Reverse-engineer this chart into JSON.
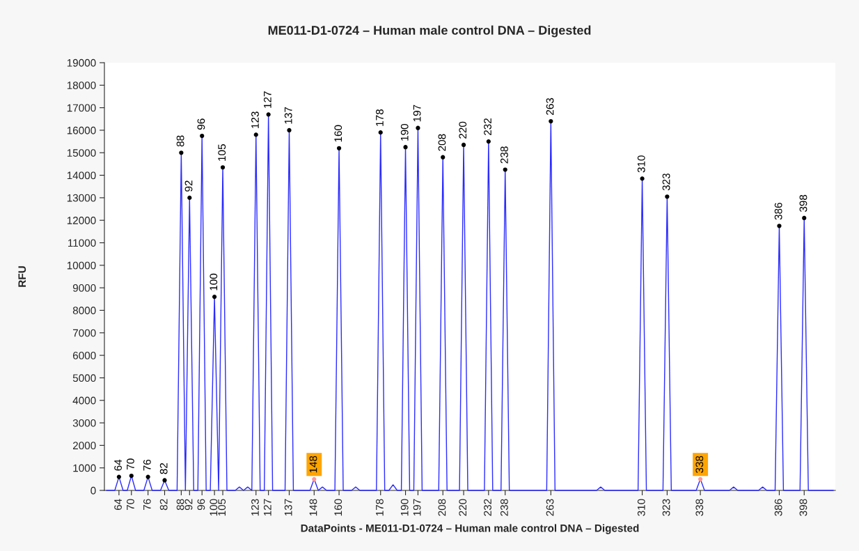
{
  "chart_data": {
    "type": "line",
    "title": "ME011-D1-0724 – Human male control DNA – Digested",
    "xlabel": "DataPoints - ME011-D1-0724 – Human male control DNA – Digested",
    "ylabel": "RFU",
    "categories": [
      null,
      null,
      null,
      "64",
      null,
      null,
      "70",
      null,
      null,
      null,
      "76",
      null,
      null,
      null,
      "82",
      null,
      null,
      null,
      "88",
      null,
      "92",
      null,
      null,
      "96",
      null,
      null,
      "100",
      null,
      "105",
      null,
      null,
      null,
      null,
      null,
      null,
      null,
      "123",
      null,
      null,
      "127",
      null,
      null,
      null,
      null,
      "137",
      null,
      null,
      null,
      null,
      null,
      "148",
      null,
      null,
      null,
      null,
      null,
      "160",
      null,
      null,
      null,
      null,
      null,
      null,
      null,
      null,
      null,
      "178",
      null,
      null,
      null,
      null,
      null,
      "190",
      null,
      null,
      "197",
      null,
      null,
      null,
      null,
      null,
      "208",
      null,
      null,
      null,
      null,
      "220",
      null,
      null,
      null,
      null,
      null,
      "232",
      null,
      null,
      null,
      "238",
      null,
      null,
      null,
      null,
      null,
      null,
      null,
      null,
      null,
      null,
      "263",
      null,
      null,
      null,
      null,
      null,
      null,
      null,
      null,
      null,
      null,
      null,
      null,
      null,
      null,
      null,
      null,
      null,
      null,
      null,
      null,
      null,
      "310",
      null,
      null,
      null,
      null,
      null,
      "323",
      null,
      null,
      null,
      null,
      null,
      null,
      null,
      "338",
      null,
      null,
      null,
      null,
      null,
      null,
      null,
      null,
      null,
      null,
      null,
      null,
      null,
      null,
      null,
      null,
      null,
      null,
      "386",
      null,
      null,
      null,
      null,
      null,
      "398",
      null,
      null,
      null,
      null,
      null,
      null,
      null
    ],
    "ylim": [
      0,
      19000
    ],
    "yticks": [
      0,
      1000,
      2000,
      3000,
      4000,
      5000,
      6000,
      7000,
      8000,
      9000,
      10000,
      11000,
      12000,
      13000,
      14000,
      15000,
      16000,
      17000,
      18000,
      19000
    ],
    "grid": false,
    "series": [
      {
        "color": "#2b2bff",
        "values": [
          0,
          0,
          0,
          600,
          0,
          0,
          650,
          0,
          0,
          0,
          600,
          0,
          0,
          0,
          450,
          0,
          0,
          0,
          15000,
          0,
          13000,
          0,
          0,
          15750,
          0,
          0,
          8600,
          0,
          14350,
          0,
          0,
          0,
          150,
          0,
          150,
          0,
          15800,
          0,
          0,
          16700,
          0,
          0,
          0,
          0,
          16000,
          0,
          0,
          0,
          0,
          0,
          500,
          0,
          150,
          0,
          0,
          0,
          15200,
          0,
          0,
          0,
          150,
          0,
          0,
          0,
          0,
          0,
          15900,
          0,
          0,
          250,
          0,
          0,
          15250,
          0,
          0,
          16100,
          0,
          0,
          0,
          0,
          0,
          14800,
          0,
          0,
          0,
          0,
          15350,
          0,
          0,
          0,
          0,
          0,
          15500,
          0,
          0,
          0,
          14250,
          0,
          0,
          0,
          0,
          0,
          0,
          0,
          0,
          0,
          0,
          16400,
          0,
          0,
          0,
          0,
          0,
          0,
          0,
          0,
          0,
          0,
          0,
          150,
          0,
          0,
          0,
          0,
          0,
          0,
          0,
          0,
          0,
          13850,
          0,
          0,
          0,
          0,
          0,
          13050,
          0,
          0,
          0,
          0,
          0,
          0,
          0,
          500,
          0,
          0,
          0,
          0,
          0,
          0,
          0,
          150,
          0,
          0,
          0,
          0,
          0,
          0,
          150,
          0,
          0,
          0,
          11750,
          0,
          0,
          0,
          0,
          0,
          12100,
          0,
          0,
          0,
          0,
          0,
          0,
          0
        ]
      },
      {
        "type": "scatter",
        "color": "#000000",
        "x": [
          "64",
          "70",
          "76",
          "82",
          "88",
          "92",
          "96",
          "100",
          "105",
          "123",
          "127",
          "137",
          "160",
          "178",
          "190",
          "197",
          "208",
          "220",
          "232",
          "238",
          "263",
          "310",
          "323",
          "386",
          "398"
        ],
        "values": [
          600,
          650,
          600,
          450,
          15000,
          13000,
          15750,
          8600,
          14350,
          15800,
          16700,
          16000,
          15200,
          15900,
          15250,
          16100,
          14800,
          15350,
          15500,
          14250,
          16400,
          13850,
          13050,
          11750,
          12100
        ]
      },
      {
        "type": "scatter",
        "color": "#ff9999",
        "x": [
          "148",
          "338"
        ],
        "values": [
          500,
          500
        ]
      }
    ],
    "annotations": [
      {
        "text": "64",
        "x": "64",
        "y": 600
      },
      {
        "text": "70",
        "x": "70",
        "y": 650
      },
      {
        "text": "76",
        "x": "76",
        "y": 600
      },
      {
        "text": "82",
        "x": "82",
        "y": 450
      },
      {
        "text": "88",
        "x": "88",
        "y": 15000
      },
      {
        "text": "92",
        "x": "92",
        "y": 13000
      },
      {
        "text": "96",
        "x": "96",
        "y": 15750
      },
      {
        "text": "100",
        "x": "100",
        "y": 8600
      },
      {
        "text": "105",
        "x": "105",
        "y": 14350
      },
      {
        "text": "123",
        "x": "123",
        "y": 15800
      },
      {
        "text": "127",
        "x": "127",
        "y": 16700
      },
      {
        "text": "137",
        "x": "137",
        "y": 16000
      },
      {
        "text": "148",
        "x": "148",
        "y": 500
      },
      {
        "text": "160",
        "x": "160",
        "y": 15200
      },
      {
        "text": "178",
        "x": "178",
        "y": 15900
      },
      {
        "text": "190",
        "x": "190",
        "y": 15250
      },
      {
        "text": "197",
        "x": "197",
        "y": 16100
      },
      {
        "text": "208",
        "x": "208",
        "y": 14800
      },
      {
        "text": "220",
        "x": "220",
        "y": 15350
      },
      {
        "text": "232",
        "x": "232",
        "y": 15500
      },
      {
        "text": "238",
        "x": "238",
        "y": 14250
      },
      {
        "text": "263",
        "x": "263",
        "y": 16400
      },
      {
        "text": "310",
        "x": "310",
        "y": 13850
      },
      {
        "text": "323",
        "x": "323",
        "y": 13050
      },
      {
        "text": "338",
        "x": "338",
        "y": 500
      },
      {
        "text": "386",
        "x": "386",
        "y": 11750
      },
      {
        "text": "398",
        "x": "398",
        "y": 12100
      }
    ]
  }
}
